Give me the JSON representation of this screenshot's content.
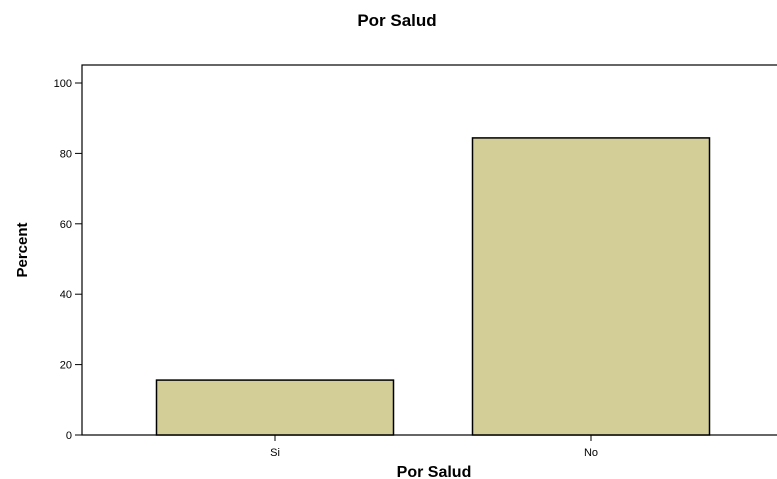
{
  "chart_data": {
    "type": "bar",
    "title": "Por Salud",
    "xlabel": "Por Salud",
    "ylabel": "Percent",
    "categories": [
      "Si",
      "No"
    ],
    "values": [
      15.6,
      84.4
    ],
    "ylim": [
      0,
      100
    ],
    "yticks": [
      "0",
      "20",
      "40",
      "60",
      "80",
      "100"
    ],
    "grid": false,
    "bar_color": "#d3cd97",
    "bar_stroke": "#000000"
  }
}
